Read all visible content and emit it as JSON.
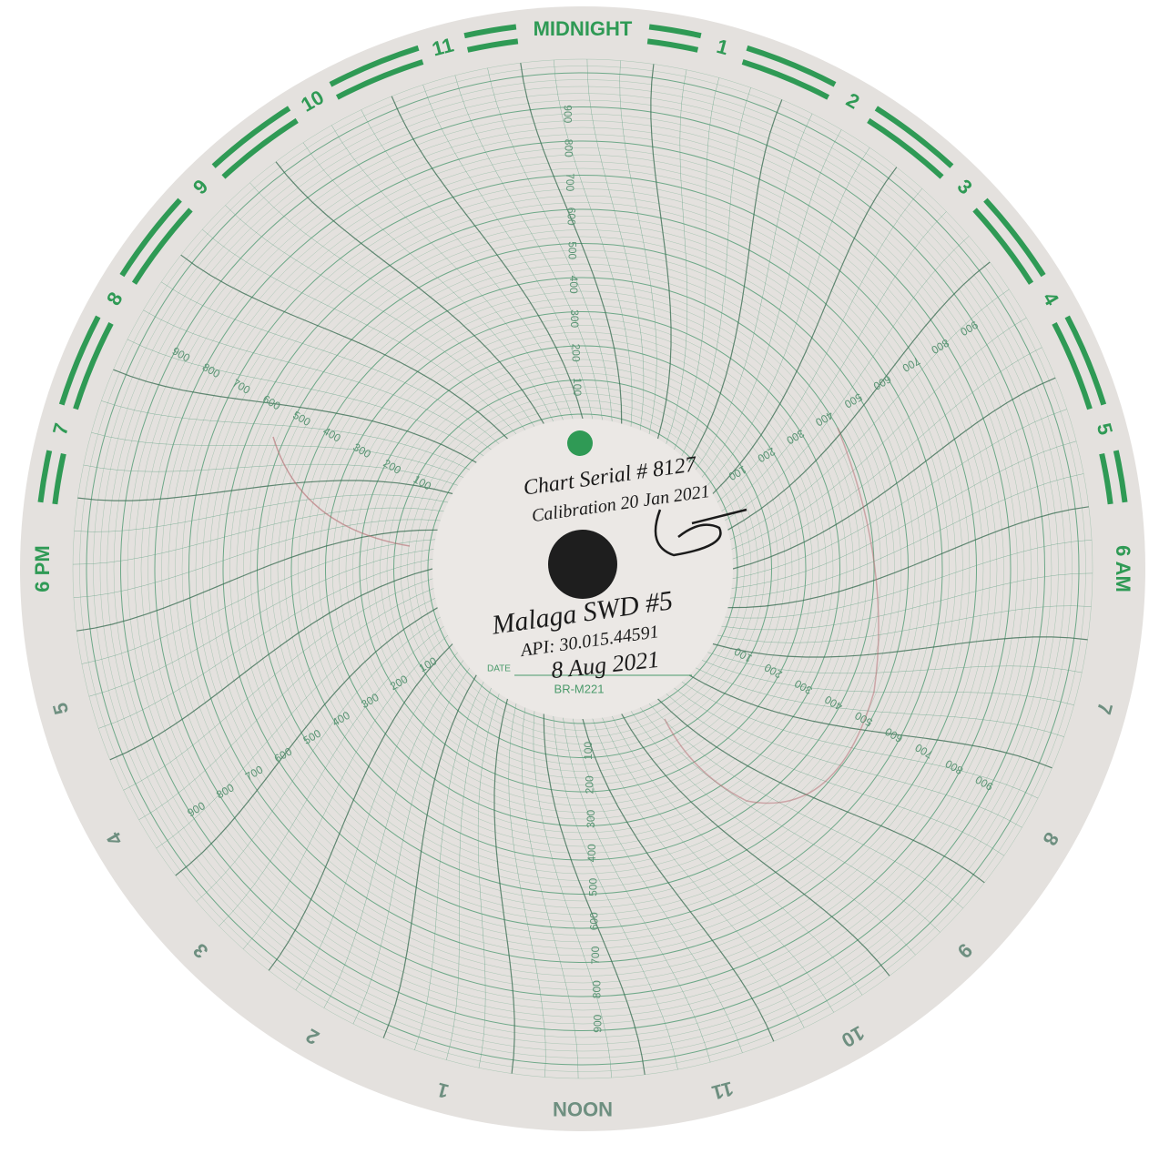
{
  "dial": {
    "hours": [
      "MIDNIGHT",
      "1",
      "2",
      "3",
      "4",
      "5",
      "6 AM",
      "7",
      "8",
      "9",
      "10",
      "11",
      "NOON",
      "1",
      "2",
      "3",
      "4",
      "5",
      "6 PM",
      "7",
      "8",
      "9",
      "10",
      "11"
    ]
  },
  "scale": [
    "100",
    "200",
    "300",
    "400",
    "500",
    "600",
    "700",
    "800",
    "900"
  ],
  "hub": {
    "serial": "Chart Serial # 8127",
    "calibration": "Calibration 20 Jan 2021",
    "well": "Malaga SWD #5",
    "api": "API: 30.015.44591",
    "date_label": "DATE",
    "date": "8 Aug 2021",
    "code": "BR-M221"
  }
}
